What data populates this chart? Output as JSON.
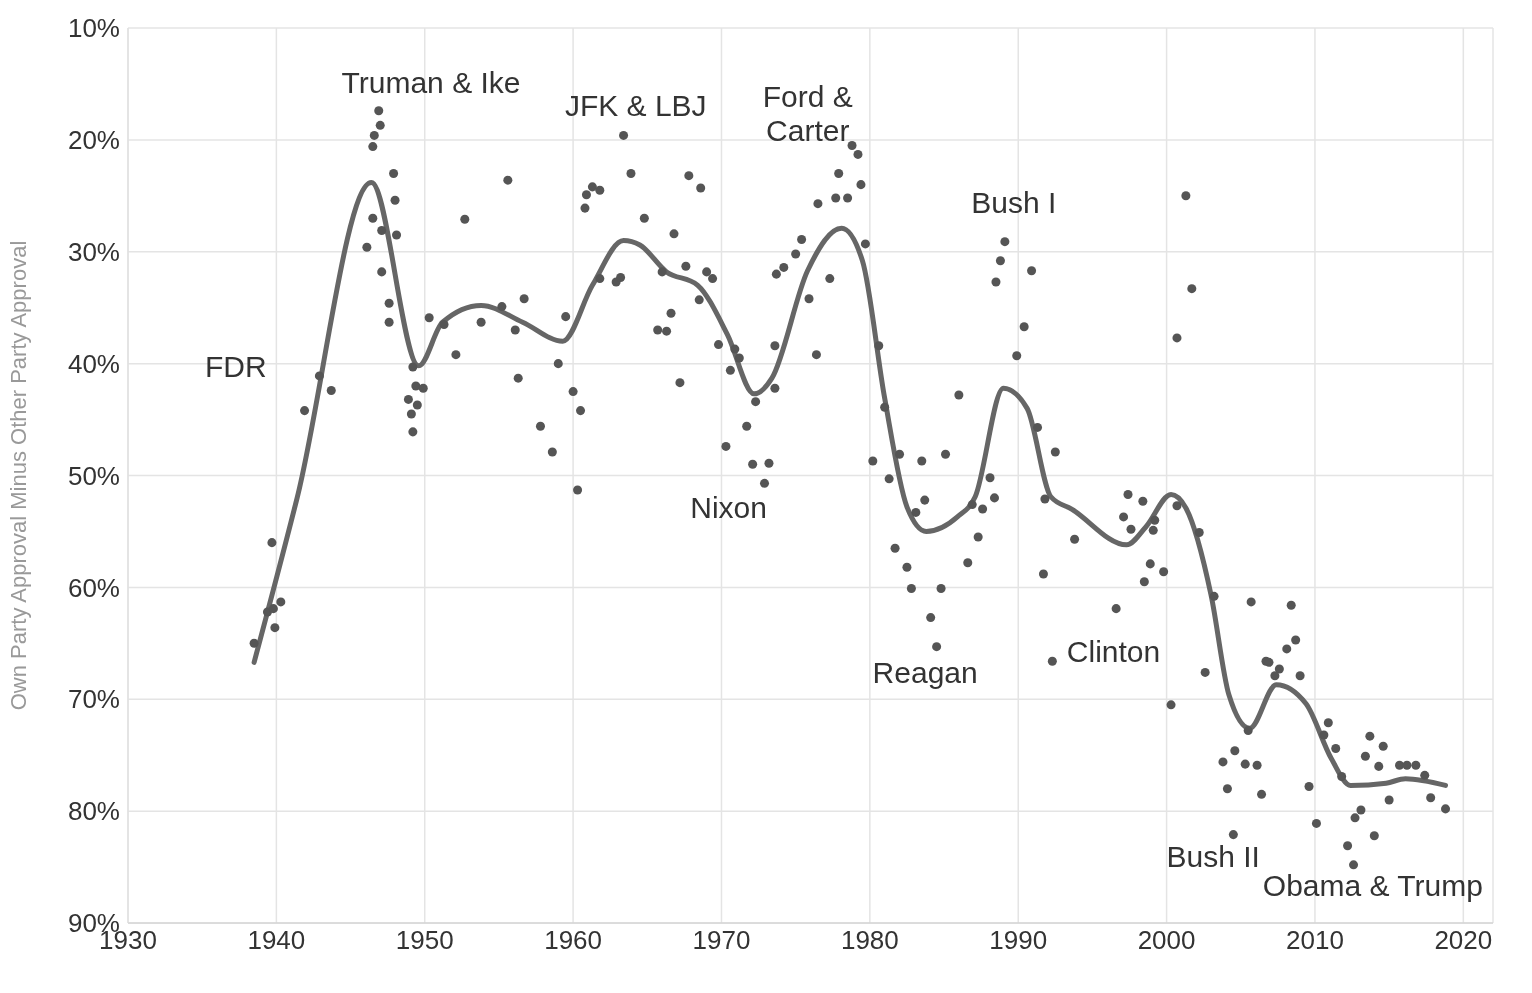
{
  "chart_data": {
    "type": "scatter",
    "ylabel": "Own Party Approval Minus Other Party Approval",
    "xlim": [
      1930,
      2022
    ],
    "xticks": [
      1930,
      1940,
      1950,
      1960,
      1970,
      1980,
      1990,
      2000,
      2010,
      2020
    ],
    "ylim": [
      90,
      10
    ],
    "yticks": [
      {
        "value": 10,
        "label": "10%"
      },
      {
        "value": 20,
        "label": "20%"
      },
      {
        "value": 30,
        "label": "30%"
      },
      {
        "value": 40,
        "label": "40%"
      },
      {
        "value": 50,
        "label": "50%"
      },
      {
        "value": 60,
        "label": "60%"
      },
      {
        "value": 70,
        "label": "70%"
      },
      {
        "value": 80,
        "label": "80%"
      },
      {
        "value": 90,
        "label": "90%"
      }
    ],
    "grid": true,
    "series": [
      {
        "color": "#555555",
        "marker": "circle",
        "x": [
          1938.5,
          1939.4,
          1939.8,
          1939.9,
          1940.3,
          1939.7,
          1941.9,
          1942.9,
          1943.7,
          1946.9,
          1947.0,
          1946.6,
          1946.5,
          1947.9,
          1948.0,
          1946.5,
          1947.1,
          1948.1,
          1946.1,
          1947.1,
          1947.6,
          1947.6,
          1949.2,
          1949.4,
          1949.9,
          1948.9,
          1949.5,
          1949.1,
          1949.2,
          1950.3,
          1951.3,
          1952.1,
          1952.7,
          1953.8,
          1955.2,
          1955.6,
          1956.1,
          1956.7,
          1956.3,
          1959.0,
          1959.5,
          1957.8,
          1958.6,
          1963.4,
          1963.9,
          1960.8,
          1960.9,
          1961.3,
          1961.8,
          1964.8,
          1966.8,
          1967.8,
          1968.6,
          1962.9,
          1963.2,
          1961.8,
          1967.6,
          1969.0,
          1969.4,
          1966.0,
          1968.5,
          1966.6,
          1965.7,
          1966.3,
          1967.2,
          1960.0,
          1960.5,
          1960.3,
          1969.8,
          1970.9,
          1971.2,
          1970.6,
          1972.3,
          1971.7,
          1973.6,
          1970.3,
          1972.1,
          1973.2,
          1972.9,
          1973.6,
          1973.7,
          1974.2,
          1975.0,
          1975.4,
          1975.9,
          1976.4,
          1976.5,
          1977.3,
          1977.7,
          1978.5,
          1977.9,
          1978.8,
          1979.2,
          1979.4,
          1979.7,
          1980.6,
          1981.0,
          1982.0,
          1980.2,
          1981.3,
          1983.1,
          1983.7,
          1983.5,
          1985.1,
          1986.0,
          1981.7,
          1982.5,
          1982.8,
          1984.1,
          1984.5,
          1984.8,
          1986.6,
          1987.3,
          1986.9,
          1987.6,
          1988.1,
          1988.4,
          1989.1,
          1988.8,
          1988.5,
          1990.9,
          1990.4,
          1989.9,
          1991.3,
          1992.5,
          1991.8,
          1993.8,
          1991.7,
          1992.3,
          1996.6,
          1997.4,
          1998.4,
          1997.1,
          1997.6,
          1999.2,
          1999.1,
          1998.9,
          1999.8,
          1998.5,
          2000.7,
          2002.2,
          2001.3,
          2001.7,
          2000.7,
          2003.2,
          2002.6,
          2000.3,
          2005.7,
          2008.4,
          2008.7,
          2008.1,
          2006.7,
          2006.9,
          2007.6,
          2007.3,
          2009.0,
          2005.5,
          2003.8,
          2004.6,
          2005.3,
          2006.1,
          2004.1,
          2006.4,
          2004.5,
          2009.6,
          2010.1,
          2010.9,
          2010.6,
          2011.4,
          2011.8,
          2013.1,
          2012.7,
          2012.2,
          2012.6,
          2014.0,
          2013.7,
          2014.6,
          2013.4,
          2014.3,
          2015.0,
          2015.7,
          2016.2,
          2016.8,
          2017.4,
          2017.8,
          2018.8
        ],
        "values": [
          65.0,
          62.2,
          61.9,
          63.6,
          61.3,
          56.0,
          44.2,
          41.1,
          42.4,
          17.4,
          18.7,
          19.6,
          20.6,
          23.0,
          25.4,
          27.0,
          28.1,
          28.5,
          29.6,
          31.8,
          34.6,
          36.3,
          40.3,
          42.0,
          42.2,
          43.2,
          43.7,
          44.5,
          46.1,
          35.9,
          36.5,
          39.2,
          27.1,
          36.3,
          34.9,
          23.6,
          37.0,
          34.2,
          41.3,
          40.0,
          35.8,
          45.6,
          47.9,
          19.6,
          23.0,
          26.1,
          24.9,
          24.2,
          24.5,
          27.0,
          28.4,
          23.2,
          24.3,
          32.7,
          32.3,
          32.4,
          31.3,
          31.8,
          32.4,
          31.8,
          34.3,
          35.5,
          37.0,
          37.1,
          41.7,
          42.5,
          44.2,
          51.3,
          38.3,
          38.7,
          39.5,
          40.6,
          43.4,
          45.6,
          42.2,
          47.4,
          49.0,
          48.9,
          50.7,
          38.4,
          32.0,
          31.4,
          30.2,
          28.9,
          34.2,
          39.2,
          25.7,
          32.4,
          25.2,
          25.2,
          23.0,
          20.5,
          21.3,
          24.0,
          29.3,
          38.4,
          43.9,
          48.1,
          48.7,
          50.3,
          53.3,
          52.2,
          48.7,
          48.1,
          42.8,
          56.5,
          58.2,
          60.1,
          62.7,
          65.3,
          60.1,
          57.8,
          55.5,
          52.6,
          53.0,
          50.2,
          52.0,
          29.1,
          30.8,
          32.7,
          31.7,
          36.7,
          39.3,
          45.7,
          47.9,
          52.1,
          55.7,
          58.8,
          66.6,
          61.9,
          51.7,
          52.3,
          53.7,
          54.8,
          54.0,
          54.9,
          57.9,
          58.6,
          59.5,
          52.7,
          55.1,
          25.0,
          33.3,
          37.7,
          60.8,
          67.6,
          70.5,
          61.3,
          61.6,
          64.7,
          65.5,
          66.6,
          66.7,
          67.3,
          67.9,
          67.9,
          72.8,
          75.6,
          74.6,
          75.8,
          75.9,
          78.0,
          78.5,
          82.1,
          77.8,
          81.1,
          72.1,
          73.2,
          74.4,
          76.9,
          79.9,
          80.6,
          83.1,
          84.8,
          82.2,
          73.3,
          74.2,
          75.1,
          76.0,
          79.0,
          75.9,
          75.9,
          75.9,
          76.8,
          78.8,
          79.8
        ]
      },
      {
        "type": "line",
        "color": "#666666",
        "x": [
          1938.5,
          1941.4,
          1946.4,
          1949.6,
          1951.2,
          1953.8,
          1956.6,
          1959.3,
          1961.3,
          1963.4,
          1964.5,
          1966.3,
          1968.4,
          1970.4,
          1972.2,
          1973.4,
          1975.8,
          1978.1,
          1979.5,
          1981.0,
          1982.5,
          1983.8,
          1985.9,
          1987.1,
          1989.0,
          1990.6,
          1992.2,
          1993.6,
          1997.3,
          1998.6,
          2000.3,
          2001.3,
          2003.0,
          2004.2,
          2005.6,
          2007.4,
          2009.4,
          2011.1,
          2012.4,
          2014.8,
          2016.1,
          2018.8
        ],
        "values": [
          66.7,
          52.0,
          23.8,
          40.2,
          36.3,
          34.8,
          36.3,
          38.0,
          33.0,
          29.0,
          29.4,
          31.8,
          33.0,
          37.4,
          42.7,
          41.3,
          31.7,
          27.9,
          30.8,
          43.1,
          52.8,
          55.0,
          53.7,
          51.9,
          42.2,
          44.0,
          51.9,
          53.0,
          56.2,
          54.6,
          51.7,
          52.9,
          60.7,
          69.6,
          72.6,
          68.7,
          70.4,
          75.3,
          77.7,
          77.5,
          77.1,
          77.7
        ]
      }
    ],
    "annotations": [
      "FDR",
      "Truman & Ike",
      "JFK & LBJ",
      "Ford &\nCarter",
      "Nixon",
      "Bush I",
      "Reagan",
      "Clinton",
      "Bush II",
      "Obama & Trump"
    ]
  }
}
